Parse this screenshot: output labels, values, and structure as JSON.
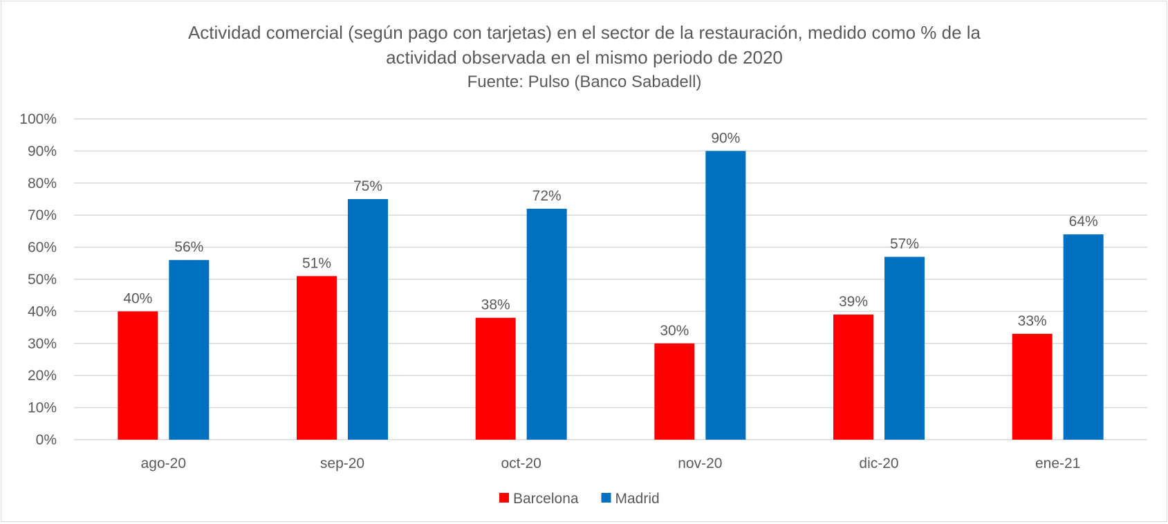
{
  "chart_data": {
    "type": "bar",
    "title_lines": [
      "Actividad comercial (según pago con tarjetas) en el sector de la restauración, medido como % de la",
      "actividad observada en el mismo periodo de 2020"
    ],
    "subtitle": "Fuente: Pulso (Banco Sabadell)",
    "categories": [
      "ago-20",
      "sep-20",
      "oct-20",
      "nov-20",
      "dic-20",
      "ene-21"
    ],
    "series": [
      {
        "name": "Barcelona",
        "color": "#FF0000",
        "values": [
          40,
          51,
          38,
          30,
          39,
          33
        ]
      },
      {
        "name": "Madrid",
        "color": "#0070C0",
        "values": [
          56,
          75,
          72,
          90,
          57,
          64
        ]
      }
    ],
    "ylim": [
      0,
      100
    ],
    "yticks": [
      "0%",
      "10%",
      "20%",
      "30%",
      "40%",
      "50%",
      "60%",
      "70%",
      "80%",
      "90%",
      "100%"
    ],
    "value_suffix": "%",
    "grid": true,
    "legend_position": "bottom"
  }
}
